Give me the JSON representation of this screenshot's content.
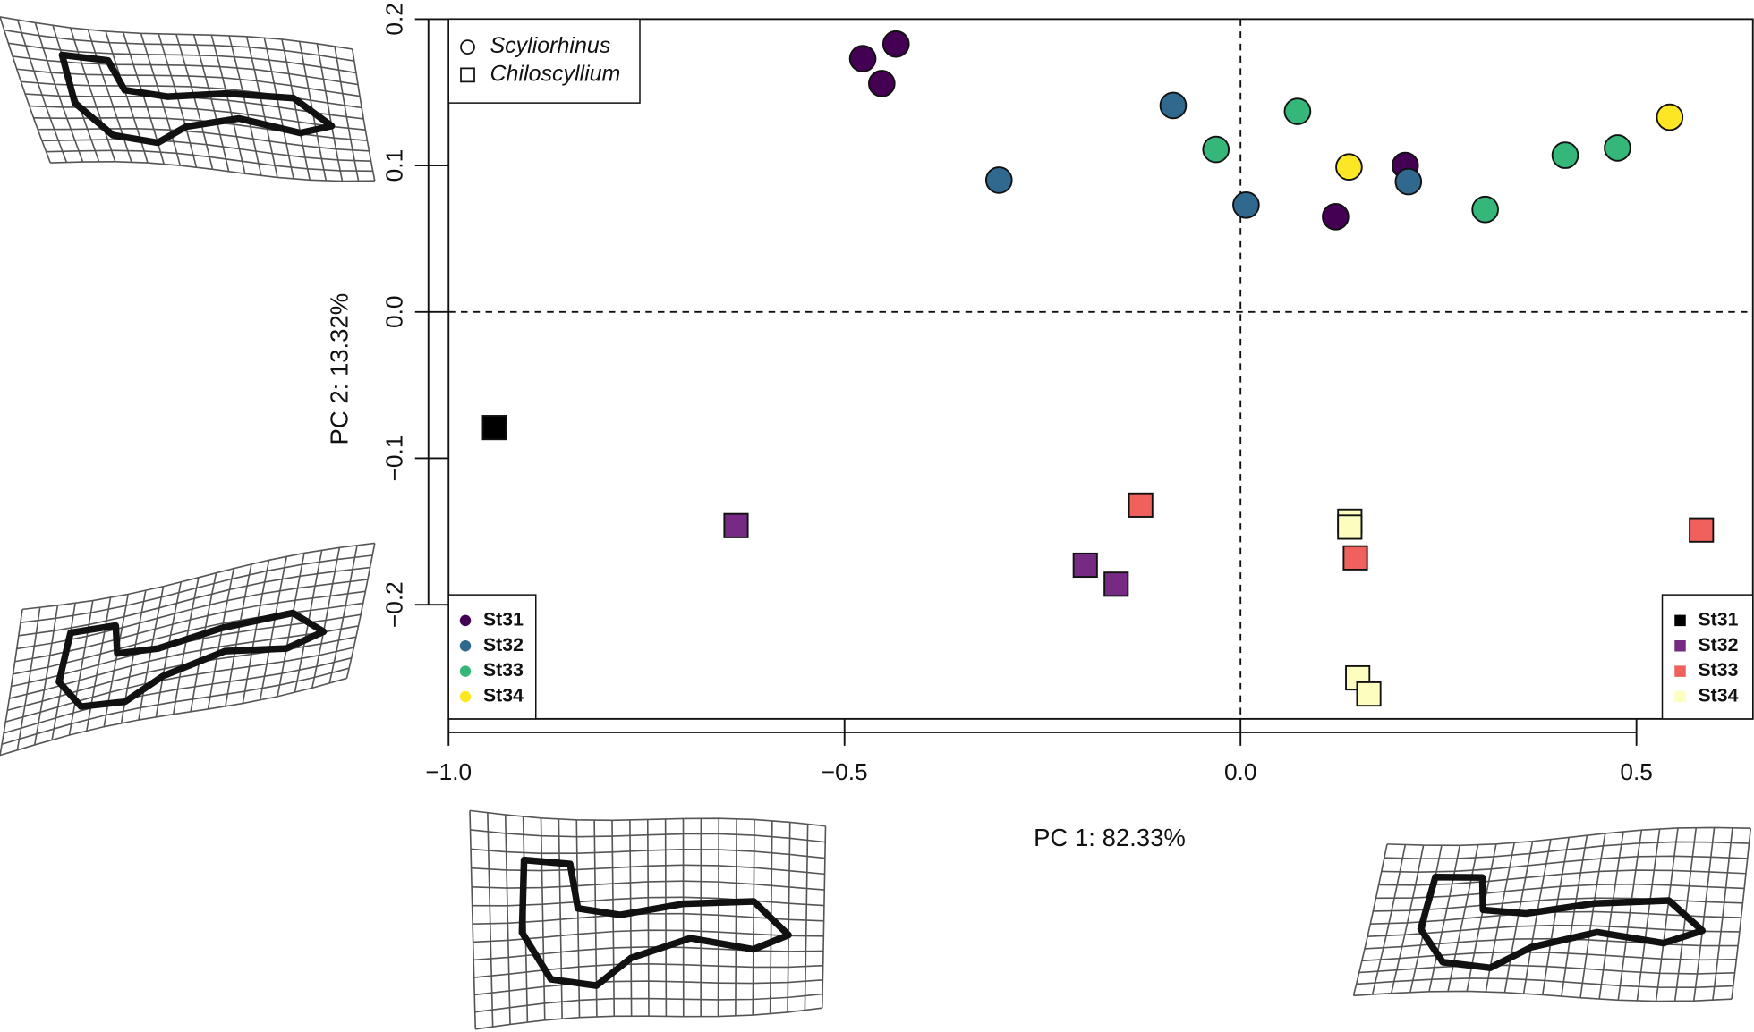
{
  "chart_data": {
    "type": "scatter",
    "x_label": "PC 1: 82.33%",
    "y_label": "PC 2: 13.32%",
    "xlim": [
      -1.0,
      0.647
    ],
    "ylim": [
      -0.278,
      0.2
    ],
    "xticks": [
      {
        "value": -1.0,
        "label": "−1.0"
      },
      {
        "value": -0.5,
        "label": "−0.5"
      },
      {
        "value": 0,
        "label": "0.0"
      },
      0.5
    ],
    "yticks": [
      {
        "value": -0.2,
        "label": "−0.2"
      },
      {
        "value": -0.1,
        "label": "−0.1"
      },
      {
        "value": 0,
        "label": "0.0"
      },
      0.1,
      0.2
    ],
    "zero_lines": true,
    "shape_legend": [
      {
        "label": "Scyliorhinus",
        "shape": "circle"
      },
      {
        "label": "Chiloscyllium",
        "shape": "square"
      }
    ],
    "series": [
      {
        "name": "St31",
        "shape": "circle",
        "color": "#440154",
        "x": [
          -0.477,
          -0.435,
          -0.453,
          0.208,
          0.12
        ],
        "values": [
          0.173,
          0.183,
          0.156,
          0.1,
          0.065
        ]
      },
      {
        "name": "St32",
        "shape": "circle",
        "color": "#31688e",
        "x": [
          -0.085,
          -0.305,
          0.007,
          0.212
        ],
        "values": [
          0.141,
          0.09,
          0.073,
          0.089
        ]
      },
      {
        "name": "St33",
        "shape": "circle",
        "color": "#35b779",
        "x": [
          0.072,
          -0.031,
          0.309,
          0.41,
          0.476
        ],
        "values": [
          0.137,
          0.111,
          0.07,
          0.107,
          0.112
        ]
      },
      {
        "name": "St34",
        "shape": "circle",
        "color": "#fde725",
        "x": [
          0.137,
          0.542
        ],
        "values": [
          0.099,
          0.133
        ]
      },
      {
        "name": "St31",
        "shape": "square",
        "color": "#000000",
        "x": [
          -0.942
        ],
        "values": [
          -0.079
        ]
      },
      {
        "name": "St32",
        "shape": "square",
        "color": "#762a83",
        "x": [
          -0.637,
          -0.196,
          -0.157
        ],
        "values": [
          -0.146,
          -0.173,
          -0.186
        ]
      },
      {
        "name": "St33",
        "shape": "square",
        "color": "#f0605d",
        "x": [
          -0.126,
          0.145,
          0.582
        ],
        "values": [
          -0.132,
          -0.168,
          -0.149
        ]
      },
      {
        "name": "St34",
        "shape": "square",
        "color": "#fcfdbf",
        "x": [
          0.138,
          0.138,
          0.148,
          0.162
        ],
        "values": [
          -0.143,
          -0.147,
          -0.25,
          -0.261
        ]
      }
    ]
  }
}
